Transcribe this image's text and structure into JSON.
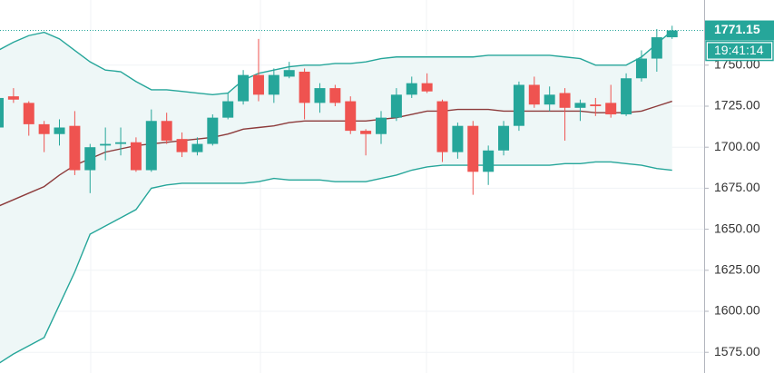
{
  "chart_data": {
    "type": "candlestick",
    "open": [
      1712,
      1731,
      1727,
      1714,
      1708,
      1713,
      1686,
      1701,
      1702,
      1703,
      1686,
      1716,
      1705,
      1697,
      1702,
      1718,
      1728,
      1744,
      1732,
      1743,
      1746,
      1727,
      1736,
      1728,
      1710,
      1708,
      1718,
      1732,
      1739,
      1728,
      1697,
      1713,
      1685,
      1698,
      1713,
      1738,
      1726,
      1733,
      1724,
      1726,
      1727,
      1720,
      1742,
      1754,
      1767
    ],
    "high": [
      1733,
      1736,
      1728,
      1716,
      1717,
      1722,
      1702,
      1712,
      1712,
      1706,
      1723,
      1721,
      1709,
      1706,
      1720,
      1733,
      1747,
      1766,
      1748,
      1752,
      1748,
      1739,
      1738,
      1731,
      1711,
      1722,
      1736,
      1743,
      1745,
      1729,
      1715,
      1716,
      1701,
      1716,
      1740,
      1743,
      1737,
      1736,
      1729,
      1730,
      1738,
      1745,
      1759,
      1772,
      1774
    ],
    "low": [
      1708,
      1727,
      1707,
      1697,
      1701,
      1683,
      1672,
      1692,
      1695,
      1685,
      1685,
      1702,
      1694,
      1695,
      1701,
      1717,
      1726,
      1728,
      1727,
      1742,
      1717,
      1721,
      1725,
      1708,
      1695,
      1702,
      1716,
      1730,
      1733,
      1691,
      1693,
      1671,
      1677,
      1695,
      1710,
      1724,
      1722,
      1704,
      1716,
      1719,
      1718,
      1719,
      1740,
      1746,
      1766
    ],
    "close": [
      1730,
      1729,
      1714,
      1708,
      1712,
      1686,
      1700,
      1702,
      1703,
      1686,
      1716,
      1704,
      1697,
      1702,
      1718,
      1728,
      1744,
      1732,
      1744,
      1747,
      1727,
      1736,
      1727,
      1710,
      1708,
      1718,
      1732,
      1739,
      1734,
      1697,
      1713,
      1685,
      1698,
      1713,
      1738,
      1726,
      1732,
      1724,
      1727,
      1725,
      1720,
      1742,
      1754,
      1767,
      1771.15
    ],
    "bands": {
      "upper": [
        1759,
        1764,
        1768,
        1770,
        1766,
        1759,
        1752,
        1747,
        1746,
        1740,
        1735,
        1735,
        1734,
        1733,
        1732,
        1733,
        1741,
        1745,
        1747,
        1749,
        1750,
        1750,
        1751,
        1751,
        1752,
        1754,
        1755,
        1755,
        1755,
        1755,
        1755,
        1755,
        1756,
        1756,
        1756,
        1756,
        1756,
        1755,
        1754,
        1750,
        1750,
        1750,
        1755,
        1763,
        1771
      ],
      "middle": [
        1664,
        1668,
        1672,
        1676,
        1683,
        1689,
        1693,
        1697,
        1699,
        1701,
        1702,
        1703,
        1704,
        1705,
        1706,
        1708,
        1711,
        1712,
        1713,
        1715,
        1716,
        1716,
        1716,
        1716,
        1716,
        1717,
        1718,
        1720,
        1722,
        1722,
        1723,
        1723,
        1723,
        1722,
        1722,
        1722,
        1722,
        1722,
        1722,
        1721,
        1721,
        1721,
        1722,
        1725,
        1728
      ],
      "lower": [
        1568,
        1574,
        1579,
        1584,
        1604,
        1624,
        1647,
        1652,
        1657,
        1662,
        1675,
        1677,
        1678,
        1678,
        1678,
        1678,
        1678,
        1679,
        1681,
        1680,
        1680,
        1680,
        1679,
        1679,
        1679,
        1681,
        1683,
        1686,
        1688,
        1689,
        1689,
        1689,
        1689,
        1689,
        1689,
        1689,
        1689,
        1690,
        1690,
        1691,
        1691,
        1690,
        1689,
        1687,
        1686
      ]
    },
    "up_color": "#26a69a",
    "down_color": "#ef5350",
    "band_color": "#26a69a",
    "middle_color": "#8d3b3b",
    "band_fill": "#eef7f7",
    "ylim": [
      1562.4,
      1789.7
    ],
    "yticks": [
      {
        "value": 1575,
        "label": "1575.00"
      },
      {
        "value": 1600,
        "label": "1600.00"
      },
      {
        "value": 1625,
        "label": "1625.00"
      },
      {
        "value": 1650,
        "label": "1650.00"
      },
      {
        "value": 1675,
        "label": "1675.00"
      },
      {
        "value": 1700,
        "label": "1700.00"
      },
      {
        "value": 1725,
        "label": "1725.00"
      },
      {
        "value": 1750,
        "label": "1750.00"
      }
    ],
    "grid": true,
    "last_price": 1771.15,
    "countdown": "19:41:14"
  }
}
